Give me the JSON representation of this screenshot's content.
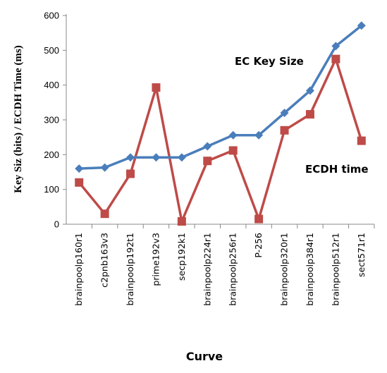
{
  "chart_data": {
    "type": "line",
    "categories": [
      "brainpoolp160r1",
      "c2pnb163v3",
      "brainpoolp192t1",
      "prime192v3",
      "secp192k1",
      "brainpoolp224r1",
      "brainpoolp256r1",
      "P-256",
      "brainpoolp320r1",
      "brainpoolp384r1",
      "brainpoolp512r1",
      "sect571r1"
    ],
    "series": [
      {
        "name": "EC Key Size",
        "color": "#4a7ebb",
        "marker": "diamond",
        "values": [
          160,
          163,
          192,
          192,
          192,
          224,
          256,
          256,
          320,
          384,
          512,
          571
        ]
      },
      {
        "name": "ECDH time",
        "color": "#be4b48",
        "marker": "square",
        "values": [
          120,
          30,
          145,
          393,
          8,
          182,
          212,
          15,
          270,
          316,
          475,
          240
        ]
      }
    ],
    "title": "",
    "xlabel": "Curve",
    "ylabel": "Key Siz (bits) / ECDH Time (ms)",
    "ylim": [
      0,
      600
    ],
    "yticks": [
      0,
      100,
      200,
      300,
      400,
      500,
      600
    ],
    "grid": false,
    "legend": "inline-labels"
  }
}
